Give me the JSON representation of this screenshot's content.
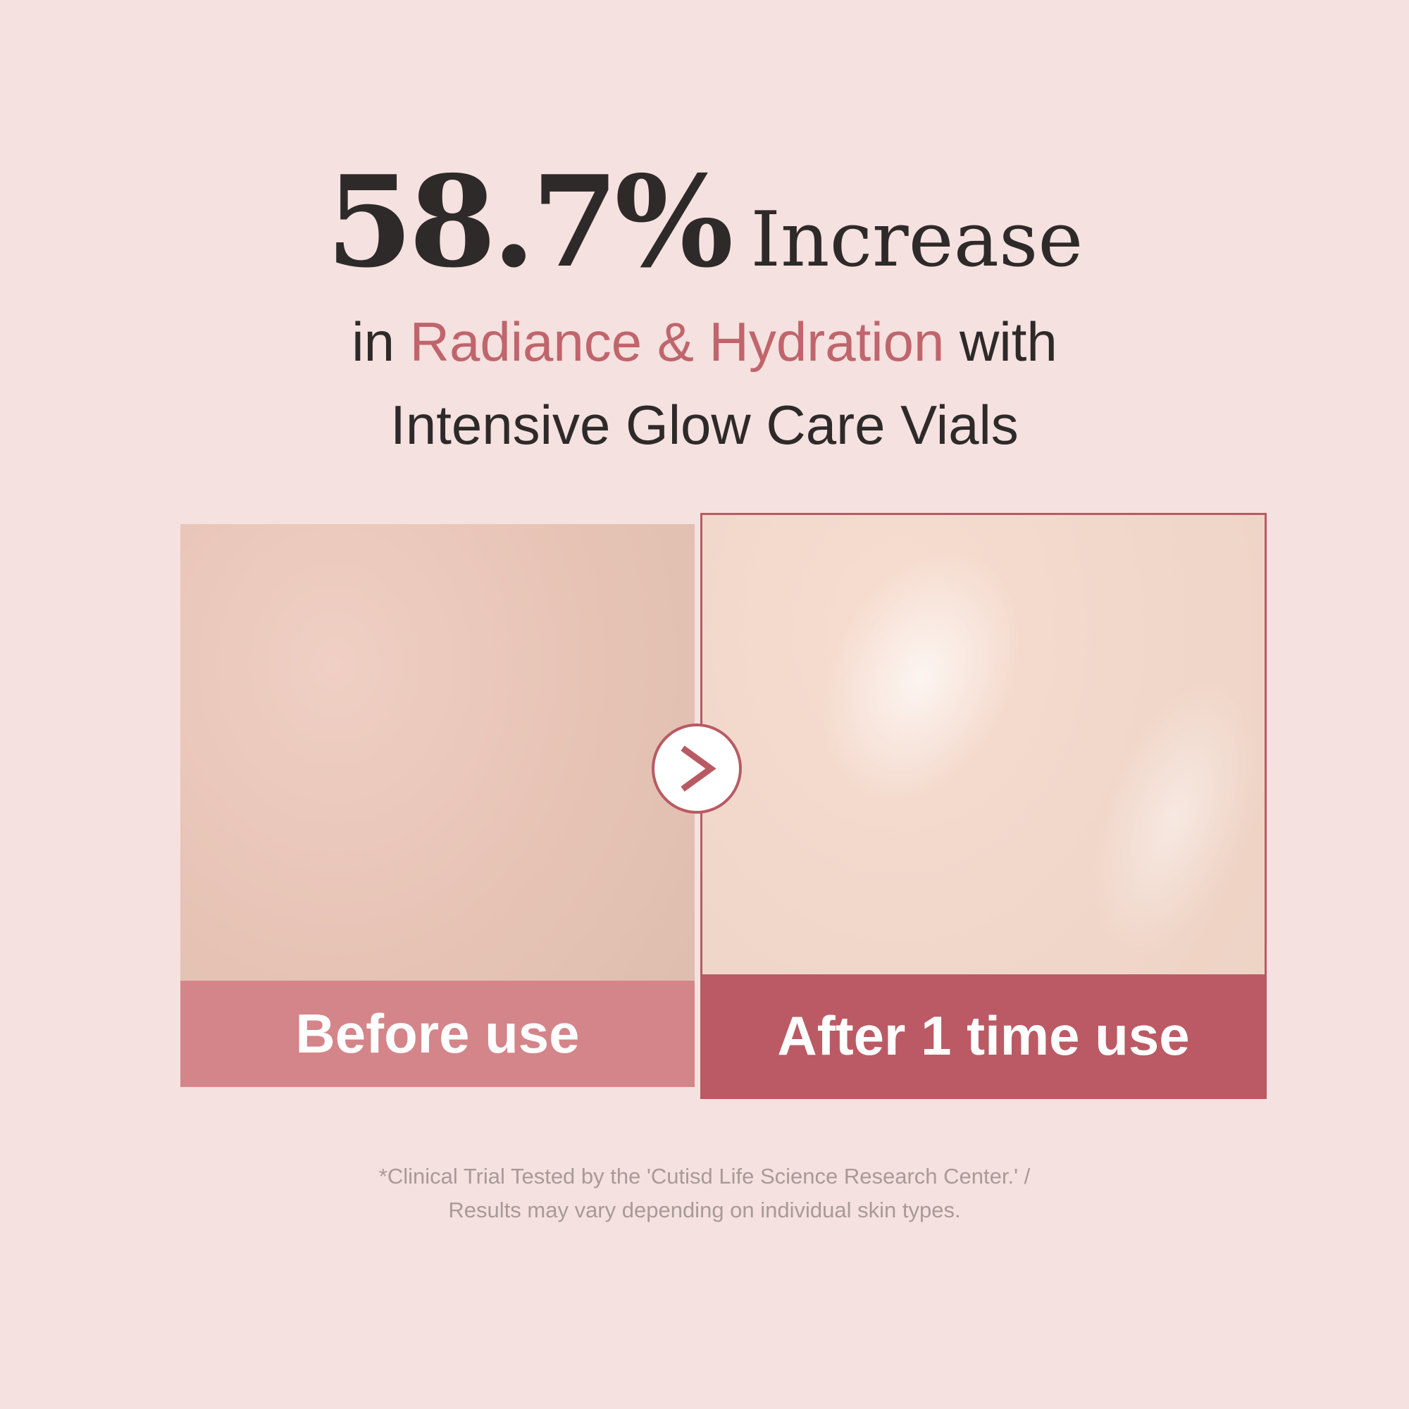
{
  "headline": {
    "stat": "58.7%",
    "stat_suffix": "Increase"
  },
  "subline": {
    "pre": "in ",
    "highlight": "Radiance & Hydration",
    "post": " with",
    "line2": "Intensive Glow Care Vials"
  },
  "comparison": {
    "before_label": "Before use",
    "after_label": "After 1 time use",
    "arrow_icon": "chevron-right-icon"
  },
  "footnote": {
    "line1": "*Clinical Trial Tested by the 'Cutisd Life Science Research Center.' /",
    "line2": "Results may vary depending on individual skin types."
  },
  "colors": {
    "background": "#f5e1df",
    "accent": "#c0656c",
    "before_band": "#d4858a",
    "after_band": "#bb5a64",
    "text": "#2e2a2a"
  }
}
